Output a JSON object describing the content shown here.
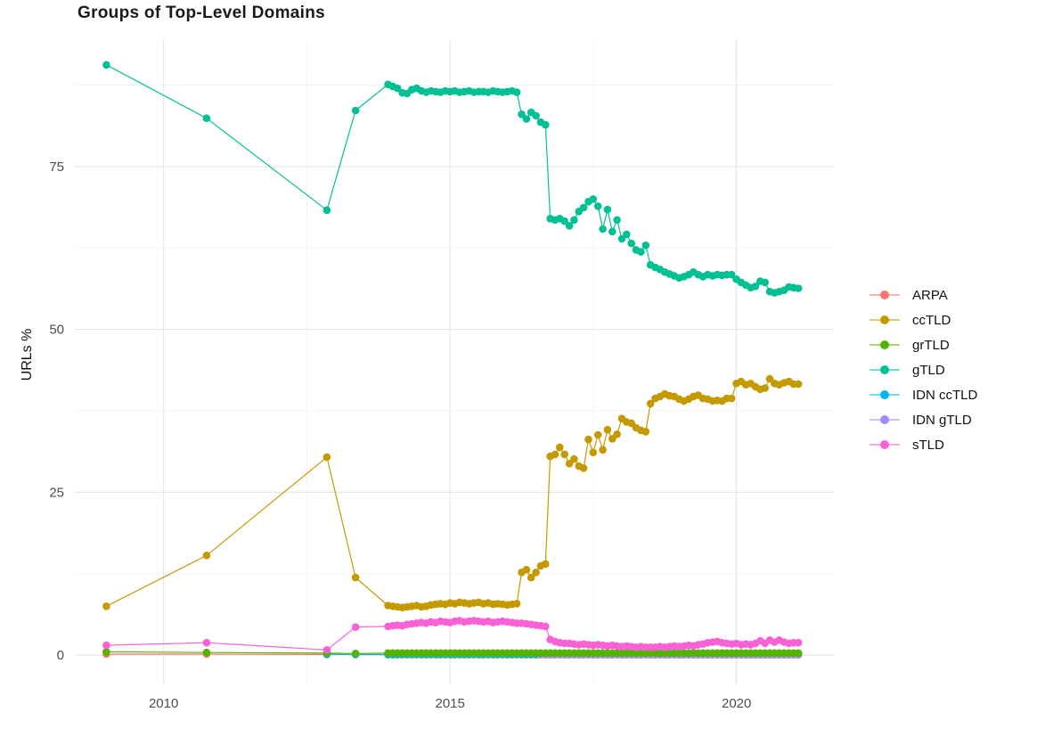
{
  "title": "Groups of Top-Level Domains",
  "axes": {
    "y_label": "URLs %",
    "x_ticks": [
      2010,
      2015,
      2020
    ],
    "x_minor": [
      2012.5,
      2017.5
    ],
    "y_ticks": [
      0,
      25,
      50,
      75
    ],
    "y_minor": [
      12.5,
      37.5,
      62.5,
      87.5
    ],
    "xlim": [
      2008.45,
      2021.7
    ],
    "ylim": [
      -4.5,
      94.4
    ],
    "grid_major_color": "#e5e5e5",
    "grid_minor_color": "#f2f2f2",
    "tick_text_color": "#4d4d4d"
  },
  "chart_data": {
    "type": "line",
    "title": "Groups of Top-Level Domains",
    "xlabel": "",
    "ylabel": "URLs %",
    "legend_position": "right",
    "grid": true,
    "months": {
      "start": 2013.9167,
      "step": 0.0833,
      "count": 87
    },
    "series": [
      {
        "name": "ARPA",
        "color": "#F8766D",
        "pre": {
          "x": [
            2009.0,
            2010.75,
            2012.85,
            2013.35
          ],
          "y": [
            0.15,
            0.15,
            0.1,
            0.08
          ]
        },
        "use_months": true,
        "y_const": 0.05
      },
      {
        "name": "IDN ccTLD",
        "color": "#00B6EB",
        "pre": {
          "x": [
            2012.85,
            2013.35
          ],
          "y": [
            0.12,
            0.1
          ]
        },
        "use_months": true,
        "y_const": 0.1
      },
      {
        "name": "IDN gTLD",
        "color": "#A58AFF",
        "use_months": true,
        "from": 2016.5,
        "y_const": 0.05
      },
      {
        "name": "grTLD",
        "color": "#53B400",
        "pre": {
          "x": [
            2009.0,
            2010.75,
            2012.85,
            2013.35
          ],
          "y": [
            0.5,
            0.4,
            0.3,
            0.25
          ]
        },
        "use_months": true,
        "y_const": 0.32
      },
      {
        "name": "ccTLD",
        "color": "#C49A00",
        "pre": {
          "x": [
            2009.0,
            2010.75,
            2012.85,
            2013.35
          ],
          "y": [
            7.5,
            15.3,
            30.4,
            11.9
          ]
        },
        "use_months": true,
        "y": [
          7.6,
          7.5,
          7.4,
          7.3,
          7.4,
          7.5,
          7.6,
          7.4,
          7.5,
          7.7,
          7.8,
          7.9,
          7.8,
          8.0,
          7.9,
          8.1,
          8.0,
          7.9,
          8.0,
          8.1,
          7.9,
          8.0,
          7.8,
          7.9,
          7.8,
          7.7,
          7.8,
          7.9,
          12.7,
          13.1,
          11.9,
          12.7,
          13.7,
          14.0,
          30.5,
          30.8,
          31.9,
          30.8,
          29.4,
          30.1,
          29.0,
          28.7,
          33.1,
          31.1,
          33.8,
          31.5,
          34.6,
          33.2,
          33.9,
          36.3,
          35.8,
          35.6,
          34.9,
          34.5,
          34.3,
          38.6,
          39.4,
          39.7,
          40.1,
          39.8,
          39.7,
          39.3,
          39.0,
          39.3,
          39.7,
          39.9,
          39.4,
          39.3,
          39.0,
          39.1,
          39.0,
          39.4,
          39.4,
          41.7,
          42.0,
          41.5,
          41.7,
          41.2,
          40.8,
          41.0,
          42.4,
          41.7,
          41.5,
          41.8,
          42.0,
          41.6,
          41.6
        ]
      },
      {
        "name": "gTLD",
        "color": "#00C094",
        "pre": {
          "x": [
            2009.0,
            2010.75,
            2012.85,
            2013.35
          ],
          "y": [
            90.6,
            82.4,
            68.3,
            83.6
          ]
        },
        "use_months": true,
        "y": [
          87.6,
          87.3,
          87.0,
          86.3,
          86.2,
          86.8,
          87.0,
          86.6,
          86.4,
          86.6,
          86.5,
          86.4,
          86.6,
          86.5,
          86.6,
          86.4,
          86.5,
          86.6,
          86.4,
          86.5,
          86.5,
          86.4,
          86.6,
          86.5,
          86.4,
          86.5,
          86.6,
          86.4,
          83.0,
          82.3,
          83.3,
          82.8,
          81.8,
          81.4,
          67.0,
          66.8,
          67.0,
          66.6,
          65.9,
          66.8,
          68.1,
          68.7,
          69.6,
          70.0,
          68.9,
          65.4,
          68.4,
          65.0,
          66.8,
          63.9,
          64.6,
          63.2,
          62.2,
          61.9,
          62.9,
          59.9,
          59.5,
          59.2,
          58.8,
          58.5,
          58.2,
          57.9,
          58.1,
          58.4,
          58.8,
          58.4,
          58.1,
          58.4,
          58.2,
          58.4,
          58.3,
          58.4,
          58.4,
          57.7,
          57.2,
          56.8,
          56.4,
          56.6,
          57.4,
          57.2,
          55.8,
          55.6,
          55.8,
          56.0,
          56.5,
          56.4,
          56.3
        ]
      },
      {
        "name": "sTLD",
        "color": "#FB61D7",
        "pre": {
          "x": [
            2009.0,
            2010.75,
            2012.85,
            2013.35
          ],
          "y": [
            1.5,
            1.9,
            0.8,
            4.3
          ]
        },
        "use_months": true,
        "y": [
          4.4,
          4.5,
          4.6,
          4.5,
          4.7,
          4.8,
          4.9,
          5.0,
          4.9,
          5.1,
          5.0,
          5.2,
          5.1,
          5.0,
          5.2,
          5.3,
          5.1,
          5.2,
          5.3,
          5.2,
          5.1,
          5.2,
          5.0,
          5.1,
          5.2,
          5.1,
          5.0,
          4.9,
          4.9,
          4.8,
          4.7,
          4.6,
          4.5,
          4.4,
          2.4,
          2.1,
          1.9,
          1.8,
          1.8,
          1.7,
          1.6,
          1.7,
          1.6,
          1.5,
          1.6,
          1.5,
          1.4,
          1.5,
          1.4,
          1.3,
          1.4,
          1.3,
          1.2,
          1.3,
          1.2,
          1.2,
          1.2,
          1.3,
          1.2,
          1.3,
          1.4,
          1.3,
          1.4,
          1.5,
          1.4,
          1.6,
          1.7,
          1.9,
          2.0,
          2.1,
          1.9,
          1.8,
          1.7,
          1.8,
          1.6,
          1.7,
          1.6,
          1.8,
          2.2,
          1.8,
          2.3,
          2.0,
          2.3,
          2.0,
          1.8,
          1.9,
          1.9
        ]
      }
    ],
    "legend_order": [
      "ARPA",
      "ccTLD",
      "grTLD",
      "gTLD",
      "IDN ccTLD",
      "IDN gTLD",
      "sTLD"
    ]
  }
}
